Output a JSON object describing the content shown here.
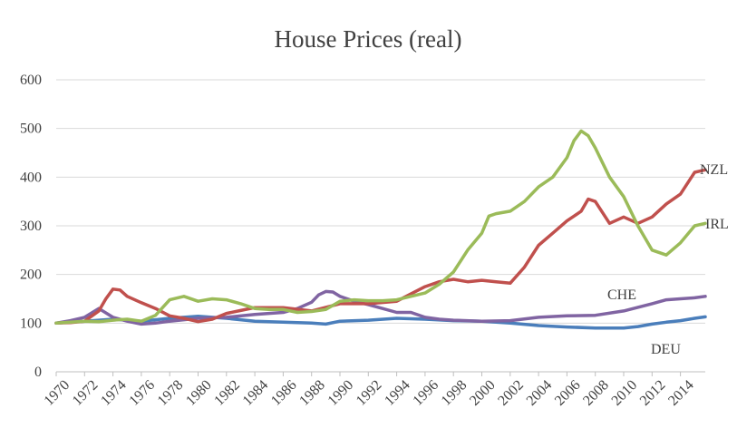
{
  "chart_data": {
    "type": "line",
    "title": "House Prices (real)",
    "xlabel": "",
    "ylabel": "",
    "xlim": [
      1970,
      2015.75
    ],
    "ylim": [
      0,
      600
    ],
    "y_ticks": [
      0,
      100,
      200,
      300,
      400,
      500,
      600
    ],
    "x_ticks": [
      "1970",
      "1972",
      "1974",
      "1976",
      "1978",
      "1980",
      "1982",
      "1984",
      "1986",
      "1988",
      "1990",
      "1992",
      "1994",
      "1996",
      "1998",
      "2000",
      "2002",
      "2004",
      "2006",
      "2008",
      "2010",
      "2012",
      "2014"
    ],
    "grid": "horizontal",
    "legend": "inline labels",
    "series": [
      {
        "name": "DEU",
        "color": "#4a7ebb",
        "x": [
          1970,
          1972,
          1974,
          1976,
          1978,
          1980,
          1982,
          1984,
          1986,
          1988,
          1989,
          1990,
          1992,
          1994,
          1996,
          1998,
          2000,
          2002,
          2004,
          2006,
          2008,
          2010,
          2011,
          2012,
          2013,
          2014,
          2015,
          2015.75
        ],
        "y": [
          100,
          104,
          108,
          104,
          110,
          114,
          110,
          104,
          102,
          100,
          98,
          104,
          106,
          110,
          108,
          105,
          104,
          100,
          95,
          92,
          90,
          90,
          93,
          98,
          102,
          105,
          110,
          113
        ]
      },
      {
        "name": "CHE",
        "color": "#8064a2",
        "x": [
          1970,
          1971,
          1972,
          1973,
          1974,
          1975,
          1976,
          1977,
          1978,
          1980,
          1982,
          1984,
          1986,
          1987,
          1988,
          1988.5,
          1989,
          1989.5,
          1990,
          1991,
          1992,
          1993,
          1994,
          1995,
          1996,
          1997,
          1998,
          2000,
          2002,
          2004,
          2006,
          2008,
          2010,
          2012,
          2013,
          2014,
          2015,
          2015.75
        ],
        "y": [
          100,
          105,
          112,
          130,
          112,
          104,
          98,
          100,
          104,
          110,
          112,
          118,
          122,
          130,
          143,
          158,
          165,
          164,
          155,
          145,
          138,
          130,
          122,
          122,
          112,
          108,
          106,
          104,
          105,
          112,
          115,
          116,
          125,
          140,
          148,
          150,
          152,
          155
        ]
      },
      {
        "name": "NZL",
        "color": "#c0504d",
        "x": [
          1970,
          1971,
          1972,
          1973,
          1973.5,
          1974,
          1974.5,
          1975,
          1976,
          1977,
          1978,
          1979,
          1980,
          1981,
          1982,
          1983,
          1984,
          1986,
          1988,
          1990,
          1992,
          1994,
          1995,
          1996,
          1997,
          1998,
          1999,
          2000,
          2001,
          2002,
          2003,
          2004,
          2005,
          2006,
          2006.5,
          2007,
          2007.5,
          2008,
          2009,
          2010,
          2011,
          2012,
          2013,
          2014,
          2015,
          2015.75
        ],
        "y": [
          100,
          101,
          104,
          125,
          150,
          170,
          168,
          155,
          142,
          130,
          115,
          110,
          103,
          108,
          120,
          126,
          132,
          132,
          125,
          140,
          140,
          145,
          160,
          175,
          185,
          190,
          185,
          188,
          185,
          182,
          215,
          260,
          285,
          310,
          320,
          330,
          355,
          350,
          305,
          318,
          305,
          318,
          345,
          365,
          410,
          415
        ]
      },
      {
        "name": "IRL",
        "color": "#9bbb59",
        "x": [
          1970,
          1971,
          1972,
          1973,
          1974,
          1975,
          1976,
          1977,
          1978,
          1979,
          1980,
          1981,
          1982,
          1983,
          1984,
          1985,
          1986,
          1987,
          1988,
          1989,
          1990,
          1991,
          1992,
          1993,
          1994,
          1995,
          1996,
          1997,
          1998,
          1999,
          2000,
          2000.5,
          2001,
          2002,
          2003,
          2004,
          2005,
          2006,
          2006.5,
          2007,
          2007.5,
          2008,
          2009,
          2010,
          2011,
          2012,
          2013,
          2014,
          2015,
          2015.75
        ],
        "y": [
          100,
          102,
          104,
          103,
          106,
          108,
          104,
          116,
          148,
          155,
          145,
          150,
          148,
          140,
          130,
          128,
          128,
          122,
          124,
          128,
          145,
          148,
          146,
          146,
          148,
          155,
          162,
          180,
          205,
          250,
          285,
          320,
          325,
          330,
          350,
          380,
          400,
          440,
          475,
          495,
          485,
          460,
          400,
          360,
          300,
          250,
          240,
          265,
          300,
          305
        ]
      }
    ]
  }
}
